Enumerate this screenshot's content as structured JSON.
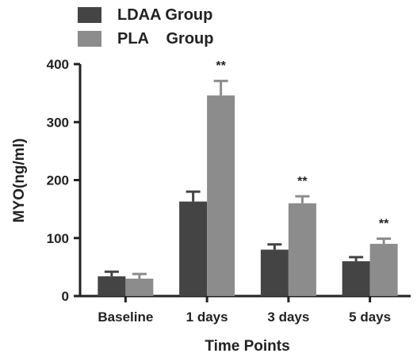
{
  "chart_data": {
    "type": "bar",
    "title": "",
    "xlabel": "Time Points",
    "ylabel": "MYO(ng/ml)",
    "ylim": [
      0,
      400
    ],
    "yticks": [
      0,
      100,
      200,
      300,
      400
    ],
    "grid": false,
    "legend_position": "top-left",
    "categories": [
      "Baseline",
      "1 days",
      "3 days",
      "5 days"
    ],
    "series": [
      {
        "name": "LDAA Group",
        "color": "#444444",
        "values": [
          34,
          163,
          80,
          60
        ],
        "errors": [
          8,
          17,
          9,
          7
        ]
      },
      {
        "name": "PLA    Group",
        "color": "#8c8c8c",
        "values": [
          30,
          346,
          160,
          90
        ],
        "errors": [
          8,
          25,
          12,
          9
        ]
      }
    ],
    "annotations": [
      {
        "category": "1 days",
        "text": "**"
      },
      {
        "category": "3 days",
        "text": "**"
      },
      {
        "category": "5 days",
        "text": "**"
      }
    ]
  }
}
